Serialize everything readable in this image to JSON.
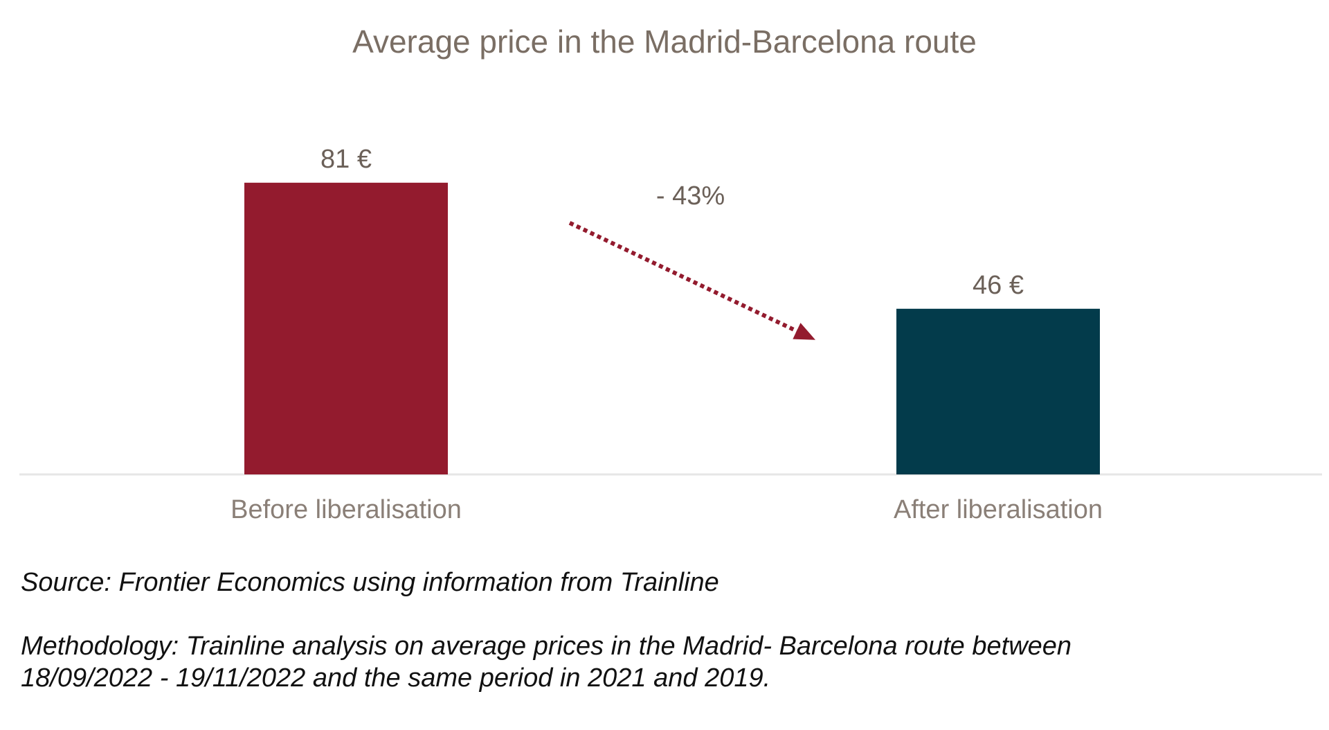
{
  "chart_data": {
    "type": "bar",
    "title": "Average price in the Madrid-Barcelona route",
    "categories": [
      "Before liberalisation",
      "After liberalisation"
    ],
    "values": [
      81,
      46
    ],
    "data_labels": [
      "81 €",
      "46 €"
    ],
    "colors": [
      "#931b2e",
      "#033b4b"
    ],
    "unit": "€",
    "ylim": [
      0,
      100
    ],
    "grid": false,
    "annotation": {
      "text": "- 43%",
      "type": "dotted-arrow",
      "from": "Before liberalisation",
      "to": "After liberalisation",
      "color": "#931b2e"
    }
  },
  "source": "Source: Frontier Economics using information from Trainline",
  "methodology": "Methodology: Trainline analysis on average prices in the Madrid- Barcelona route between 18/09/2022 - 19/11/2022 and the same period in 2021 and 2019."
}
